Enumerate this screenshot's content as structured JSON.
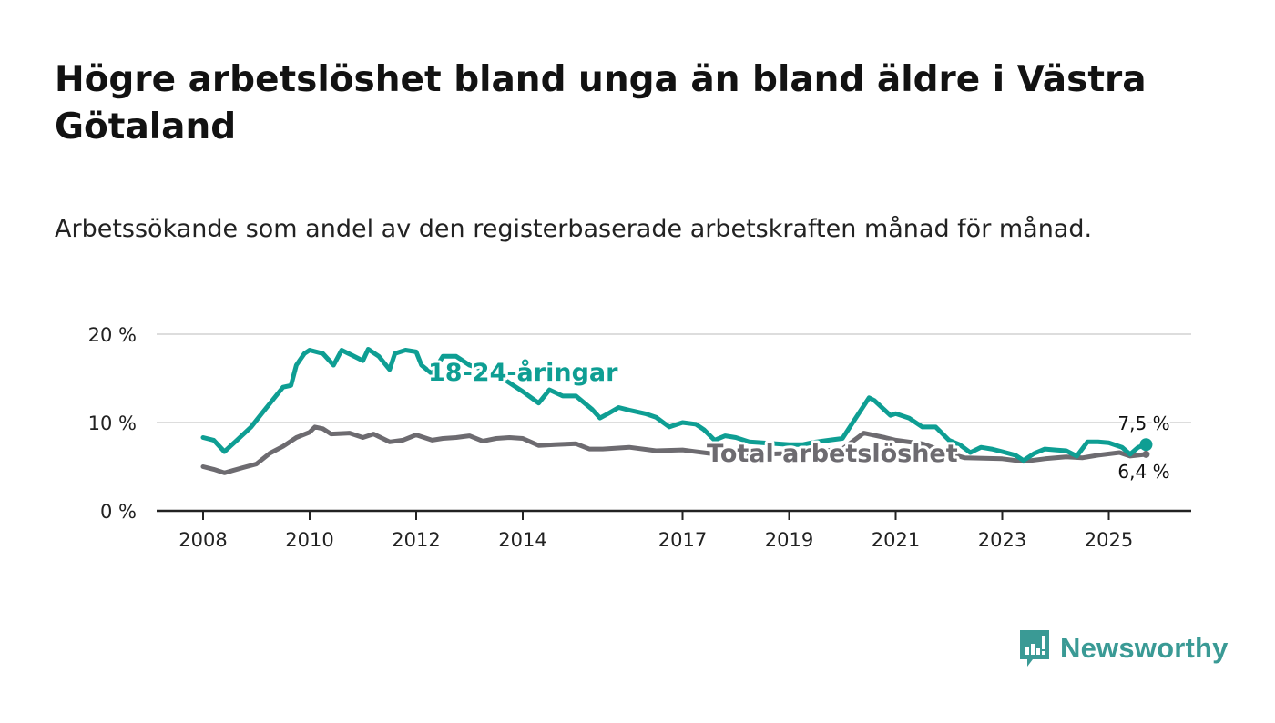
{
  "title": "Högre arbetslöshet bland unga än bland äldre i Västra Götaland",
  "subtitle": "Arbetssökande som andel av den registerbaserade arbetskraften månad för månad.",
  "brand": "Newsworthy",
  "colors": {
    "youth": "#0e9e93",
    "total": "#6d6b70",
    "grid": "#dddddd",
    "axis": "#222222",
    "brand": "#3a9a95"
  },
  "chart_data": {
    "type": "line",
    "title": "Högre arbetslöshet bland unga än bland äldre i Västra Götaland",
    "xlabel": "",
    "ylabel": "",
    "xlim": [
      2007.7,
      2026.1
    ],
    "ylim": [
      0,
      20
    ],
    "y_ticks": [
      {
        "v": 0,
        "label": "0 %"
      },
      {
        "v": 10,
        "label": "10 %"
      },
      {
        "v": 20,
        "label": "20 %"
      }
    ],
    "x_ticks": [
      {
        "v": 2008,
        "label": "2008"
      },
      {
        "v": 2010,
        "label": "2010"
      },
      {
        "v": 2012,
        "label": "2012"
      },
      {
        "v": 2014,
        "label": "2014"
      },
      {
        "v": 2017,
        "label": "2017"
      },
      {
        "v": 2019,
        "label": "2019"
      },
      {
        "v": 2021,
        "label": "2021"
      },
      {
        "v": 2023,
        "label": "2023"
      },
      {
        "v": 2025,
        "label": "2025"
      }
    ],
    "grid": true,
    "series": [
      {
        "name": "18-24-åringar",
        "end_label": "7,5 %",
        "points": [
          [
            2008.0,
            8.3
          ],
          [
            2008.2,
            8.0
          ],
          [
            2008.4,
            6.7
          ],
          [
            2008.6,
            7.8
          ],
          [
            2008.9,
            9.5
          ],
          [
            2009.1,
            11.0
          ],
          [
            2009.3,
            12.5
          ],
          [
            2009.5,
            14.0
          ],
          [
            2009.65,
            14.2
          ],
          [
            2009.75,
            16.5
          ],
          [
            2009.9,
            17.8
          ],
          [
            2010.0,
            18.2
          ],
          [
            2010.25,
            17.8
          ],
          [
            2010.45,
            16.5
          ],
          [
            2010.6,
            18.2
          ],
          [
            2010.8,
            17.6
          ],
          [
            2011.0,
            17.0
          ],
          [
            2011.1,
            18.3
          ],
          [
            2011.3,
            17.5
          ],
          [
            2011.5,
            16.0
          ],
          [
            2011.6,
            17.8
          ],
          [
            2011.8,
            18.2
          ],
          [
            2012.0,
            18.0
          ],
          [
            2012.1,
            16.5
          ],
          [
            2012.3,
            15.5
          ],
          [
            2012.5,
            17.5
          ],
          [
            2012.75,
            17.5
          ],
          [
            2013.0,
            16.5
          ],
          [
            2013.5,
            15.5
          ],
          [
            2013.75,
            14.5
          ],
          [
            2014.0,
            13.5
          ],
          [
            2014.3,
            12.2
          ],
          [
            2014.5,
            13.7
          ],
          [
            2014.75,
            13.0
          ],
          [
            2015.0,
            13.0
          ],
          [
            2015.3,
            11.5
          ],
          [
            2015.45,
            10.5
          ],
          [
            2015.6,
            11.0
          ],
          [
            2015.8,
            11.7
          ],
          [
            2016.0,
            11.4
          ],
          [
            2016.3,
            11.0
          ],
          [
            2016.5,
            10.6
          ],
          [
            2016.75,
            9.5
          ],
          [
            2017.0,
            10.0
          ],
          [
            2017.25,
            9.8
          ],
          [
            2017.4,
            9.2
          ],
          [
            2017.6,
            8.0
          ],
          [
            2017.8,
            8.5
          ],
          [
            2018.0,
            8.3
          ],
          [
            2018.25,
            7.8
          ],
          [
            2018.5,
            7.7
          ],
          [
            2018.75,
            7.6
          ],
          [
            2019.0,
            7.5
          ],
          [
            2019.25,
            7.5
          ],
          [
            2019.5,
            7.8
          ],
          [
            2019.75,
            8.0
          ],
          [
            2020.0,
            8.2
          ],
          [
            2020.25,
            10.5
          ],
          [
            2020.5,
            12.8
          ],
          [
            2020.6,
            12.5
          ],
          [
            2020.9,
            10.8
          ],
          [
            2021.0,
            11.0
          ],
          [
            2021.25,
            10.5
          ],
          [
            2021.5,
            9.5
          ],
          [
            2021.75,
            9.5
          ],
          [
            2022.0,
            8.0
          ],
          [
            2022.2,
            7.5
          ],
          [
            2022.4,
            6.6
          ],
          [
            2022.6,
            7.2
          ],
          [
            2022.8,
            7.0
          ],
          [
            2023.0,
            6.7
          ],
          [
            2023.25,
            6.3
          ],
          [
            2023.4,
            5.7
          ],
          [
            2023.6,
            6.5
          ],
          [
            2023.8,
            7.0
          ],
          [
            2024.0,
            6.9
          ],
          [
            2024.2,
            6.8
          ],
          [
            2024.4,
            6.2
          ],
          [
            2024.6,
            7.8
          ],
          [
            2024.8,
            7.8
          ],
          [
            2025.0,
            7.7
          ],
          [
            2025.25,
            7.2
          ],
          [
            2025.4,
            6.4
          ],
          [
            2025.55,
            7.2
          ],
          [
            2025.7,
            7.5
          ]
        ]
      },
      {
        "name": "Total arbetslöshet",
        "end_label": "6,4 %",
        "points": [
          [
            2008.0,
            5.0
          ],
          [
            2008.2,
            4.7
          ],
          [
            2008.4,
            4.3
          ],
          [
            2008.75,
            4.9
          ],
          [
            2009.0,
            5.3
          ],
          [
            2009.25,
            6.5
          ],
          [
            2009.5,
            7.3
          ],
          [
            2009.75,
            8.3
          ],
          [
            2010.0,
            8.9
          ],
          [
            2010.1,
            9.5
          ],
          [
            2010.25,
            9.3
          ],
          [
            2010.4,
            8.7
          ],
          [
            2010.75,
            8.8
          ],
          [
            2011.0,
            8.3
          ],
          [
            2011.2,
            8.7
          ],
          [
            2011.5,
            7.8
          ],
          [
            2011.75,
            8.0
          ],
          [
            2012.0,
            8.6
          ],
          [
            2012.3,
            8.0
          ],
          [
            2012.5,
            8.2
          ],
          [
            2012.75,
            8.3
          ],
          [
            2013.0,
            8.5
          ],
          [
            2013.25,
            7.9
          ],
          [
            2013.5,
            8.2
          ],
          [
            2013.75,
            8.3
          ],
          [
            2014.0,
            8.2
          ],
          [
            2014.3,
            7.4
          ],
          [
            2014.6,
            7.5
          ],
          [
            2015.0,
            7.6
          ],
          [
            2015.25,
            7.0
          ],
          [
            2015.5,
            7.0
          ],
          [
            2016.0,
            7.2
          ],
          [
            2016.5,
            6.8
          ],
          [
            2017.0,
            6.9
          ],
          [
            2017.5,
            6.5
          ],
          [
            2018.0,
            6.4
          ],
          [
            2018.5,
            6.4
          ],
          [
            2019.0,
            6.5
          ],
          [
            2019.5,
            6.7
          ],
          [
            2020.0,
            7.0
          ],
          [
            2020.4,
            8.8
          ],
          [
            2020.8,
            8.3
          ],
          [
            2021.0,
            8.0
          ],
          [
            2021.5,
            7.6
          ],
          [
            2022.0,
            6.5
          ],
          [
            2022.3,
            6.0
          ],
          [
            2023.0,
            5.9
          ],
          [
            2023.4,
            5.6
          ],
          [
            2023.8,
            5.9
          ],
          [
            2024.2,
            6.1
          ],
          [
            2024.5,
            6.0
          ],
          [
            2024.8,
            6.3
          ],
          [
            2025.2,
            6.6
          ],
          [
            2025.4,
            6.2
          ],
          [
            2025.7,
            6.4
          ]
        ]
      }
    ]
  }
}
